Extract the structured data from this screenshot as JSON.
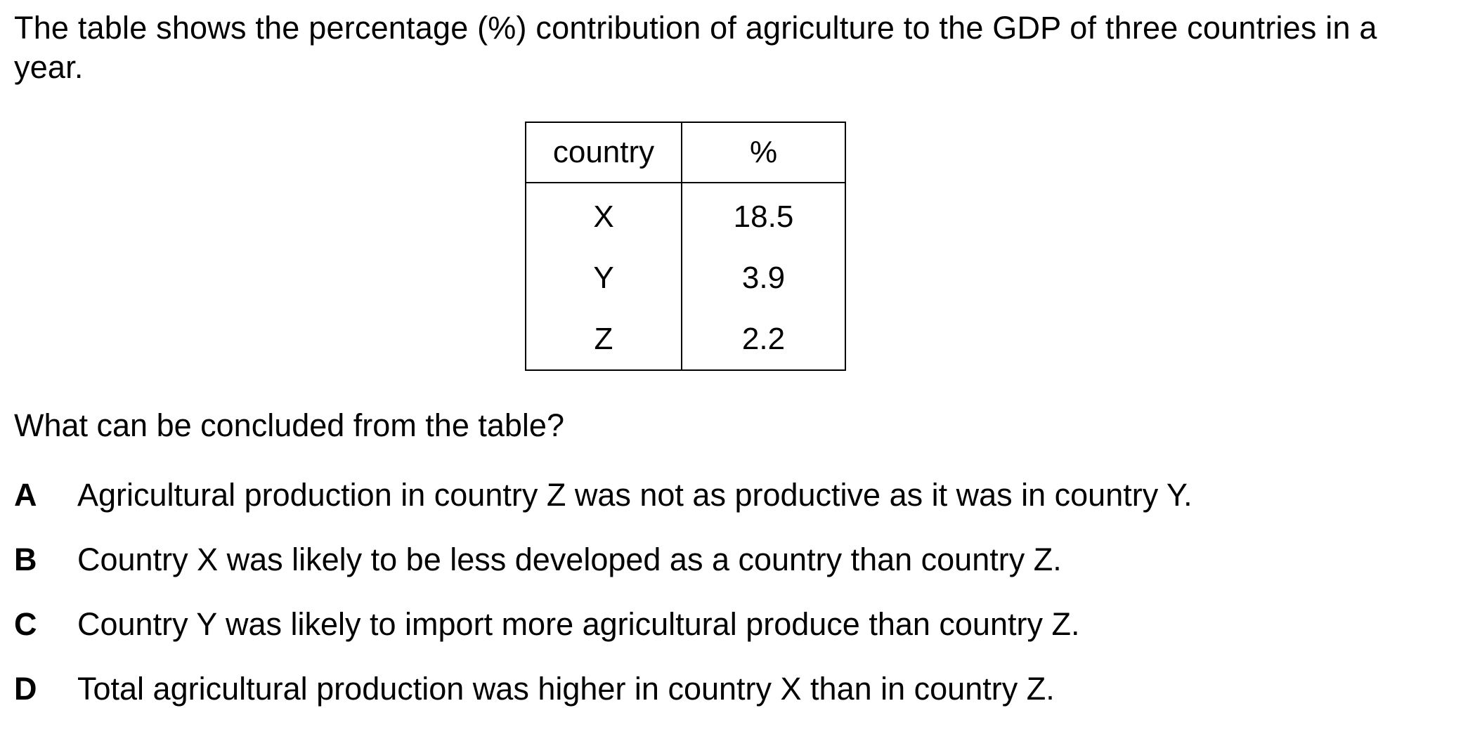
{
  "question": {
    "intro": "The table shows the percentage (%) contribution of agriculture to the GDP of three countries in a year.",
    "prompt": "What can be concluded from the table?"
  },
  "table": {
    "headers": [
      "country",
      "%"
    ],
    "rows": [
      [
        "X",
        "18.5"
      ],
      [
        "Y",
        "3.9"
      ],
      [
        "Z",
        "2.2"
      ]
    ]
  },
  "options": [
    {
      "letter": "A",
      "text": "Agricultural production in country Z was not as productive as it was in country Y."
    },
    {
      "letter": "B",
      "text": "Country X was likely to be less developed as a country than country Z."
    },
    {
      "letter": "C",
      "text": "Country Y was likely to import more agricultural produce than country Z."
    },
    {
      "letter": "D",
      "text": "Total agricultural production was higher in country X than in country Z."
    }
  ]
}
